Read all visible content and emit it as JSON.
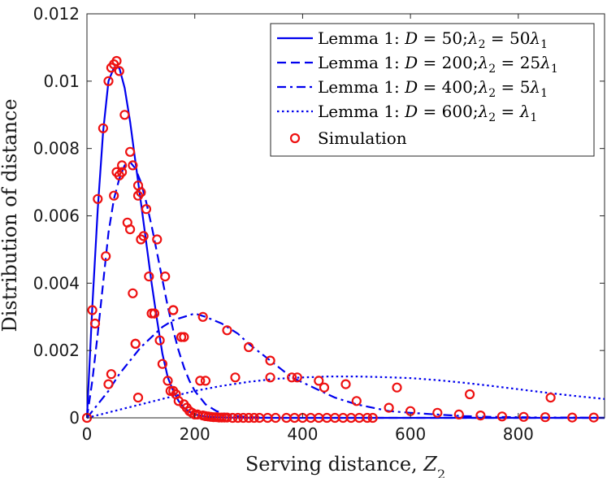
{
  "chart_data": {
    "type": "line",
    "title": "",
    "xlabel": "Serving distance, ",
    "xlabel_var": "Z",
    "xlabel_sub": "2",
    "ylabel": "Distribution of distance",
    "xlim": [
      0,
      960
    ],
    "ylim": [
      0,
      0.012
    ],
    "xticks": [
      0,
      200,
      400,
      600,
      800
    ],
    "xtick_labels": [
      "0",
      "200",
      "400",
      "600",
      "800"
    ],
    "yticks": [
      0,
      0.002,
      0.004,
      0.006,
      0.008,
      0.01,
      0.012
    ],
    "ytick_labels": [
      "0",
      "0.002",
      "0.004",
      "0.006",
      "0.008",
      "0.01",
      "0.012"
    ],
    "line_color": "#0000ee",
    "marker_color": "#ee1111",
    "legend_position": "top-right",
    "series": [
      {
        "name": "Lemma 1:  D = 50;λ2 = 50λ1",
        "legend_prefix": "Lemma 1:  ",
        "legend_D": "D",
        "legend_Dval": " = 50;",
        "legend_lam": "λ",
        "legend_eq": " = ",
        "legend_coef": "50",
        "style": "solid",
        "x": [
          0,
          10,
          20,
          30,
          40,
          50,
          60,
          70,
          80,
          90,
          100,
          110,
          120,
          130,
          140,
          150,
          160,
          170,
          180,
          190,
          200,
          220,
          240,
          260,
          280,
          300,
          350,
          400,
          500,
          600,
          700,
          800,
          960
        ],
        "y": [
          0,
          0.0033,
          0.0062,
          0.0085,
          0.01,
          0.0104,
          0.0104,
          0.0098,
          0.0088,
          0.0076,
          0.0064,
          0.0052,
          0.004,
          0.0029,
          0.0019,
          0.0012,
          0.0008,
          0.0005,
          0.0003,
          0.00018,
          0.0001,
          4e-05,
          2e-05,
          1e-05,
          5e-06,
          2e-06,
          0,
          0,
          0,
          0,
          0,
          0,
          0
        ]
      },
      {
        "name": "Lemma 1:  D = 200;λ2 = 25λ1",
        "legend_prefix": "Lemma 1:  ",
        "legend_D": "D",
        "legend_Dval": " = 200;",
        "legend_lam": "λ",
        "legend_eq": " = ",
        "legend_coef": "25",
        "style": "dashed",
        "x": [
          0,
          10,
          20,
          30,
          40,
          50,
          60,
          70,
          80,
          90,
          100,
          110,
          120,
          130,
          140,
          150,
          160,
          170,
          180,
          190,
          200,
          210,
          220,
          240,
          260,
          280,
          300,
          350,
          400,
          500,
          600,
          700,
          800,
          960
        ],
        "y": [
          0,
          0.0011,
          0.0025,
          0.004,
          0.0055,
          0.0065,
          0.0071,
          0.0075,
          0.0076,
          0.0074,
          0.007,
          0.0064,
          0.0057,
          0.0049,
          0.0041,
          0.0033,
          0.0026,
          0.002,
          0.0015,
          0.0011,
          0.0008,
          0.0006,
          0.0004,
          0.0002,
          0.0001,
          5e-05,
          2e-05,
          0,
          0,
          0,
          0,
          0,
          0,
          0
        ]
      },
      {
        "name": "Lemma 1:  D = 400;λ2 = 5λ1",
        "legend_prefix": "Lemma 1:  ",
        "legend_D": "D",
        "legend_Dval": " = 400;",
        "legend_lam": "λ",
        "legend_eq": " = ",
        "legend_coef": "5",
        "style": "dashdot",
        "x": [
          0,
          20,
          40,
          60,
          80,
          100,
          120,
          140,
          160,
          180,
          200,
          220,
          250,
          280,
          300,
          340,
          380,
          420,
          460,
          500,
          560,
          600,
          650,
          700,
          750,
          800,
          850,
          900,
          960
        ],
        "y": [
          0,
          0.0004,
          0.0008,
          0.0013,
          0.0017,
          0.0021,
          0.0024,
          0.0027,
          0.0029,
          0.003,
          0.0031,
          0.003,
          0.0028,
          0.0025,
          0.0022,
          0.0017,
          0.0012,
          0.0009,
          0.0006,
          0.0004,
          0.0002,
          0.00015,
          0.0001,
          5e-05,
          3e-05,
          2e-05,
          1e-05,
          1e-05,
          0
        ]
      },
      {
        "name": "Lemma 1:  D = 600;λ2 = λ1",
        "legend_prefix": "Lemma 1:  ",
        "legend_D": "D",
        "legend_Dval": " = 600;",
        "legend_lam": "λ",
        "legend_eq": " = ",
        "legend_coef": "",
        "style": "dotted",
        "x": [
          0,
          50,
          100,
          150,
          200,
          250,
          300,
          350,
          400,
          450,
          500,
          550,
          600,
          650,
          700,
          750,
          800,
          850,
          900,
          960
        ],
        "y": [
          0,
          0.0002,
          0.0004,
          0.0006,
          0.0008,
          0.00095,
          0.00107,
          0.00116,
          0.0012,
          0.00123,
          0.00123,
          0.00121,
          0.00118,
          0.00112,
          0.00104,
          0.00095,
          0.00085,
          0.00075,
          0.00066,
          0.00056
        ]
      }
    ],
    "simulation": {
      "name": "Simulation",
      "x": [
        0,
        10,
        15,
        20,
        30,
        35,
        40,
        45,
        50,
        55,
        60,
        65,
        70,
        80,
        85,
        90,
        95,
        100,
        105,
        110,
        115,
        120,
        125,
        130,
        135,
        140,
        145,
        150,
        155,
        160,
        165,
        170,
        175,
        180,
        185,
        190,
        195,
        200,
        205,
        210,
        215,
        220,
        225,
        230,
        235,
        240,
        245,
        250,
        255,
        260,
        270,
        280,
        290,
        300,
        310,
        320,
        335,
        350,
        370,
        385,
        400,
        415,
        430,
        445,
        460,
        475,
        490,
        505,
        520,
        530,
        45,
        90,
        125,
        160,
        180,
        215,
        260,
        300,
        340,
        390,
        440,
        500,
        560,
        600,
        650,
        690,
        730,
        770,
        810,
        850,
        900,
        940,
        40,
        95,
        160,
        220,
        275,
        340,
        380,
        430,
        480,
        575,
        710,
        860,
        50,
        55,
        60,
        65,
        75,
        80,
        85,
        95,
        100
      ],
      "y": [
        0,
        0.0032,
        0.0028,
        0.0065,
        0.0086,
        0.0048,
        0.01,
        0.0104,
        0.0105,
        0.0106,
        0.0103,
        0.0073,
        0.009,
        0.0079,
        0.0075,
        0.0022,
        0.0069,
        0.0067,
        0.0054,
        0.0062,
        0.0042,
        0.0031,
        0.0031,
        0.0053,
        0.0023,
        0.0016,
        0.0042,
        0.0011,
        0.0008,
        0.0032,
        0.0007,
        0.0005,
        0.0024,
        0.0004,
        0.0003,
        0.0002,
        0.00015,
        0.0001,
        0.0001,
        0.0011,
        7e-05,
        5e-05,
        4e-05,
        3e-05,
        2e-05,
        2e-05,
        1e-05,
        1e-05,
        1e-05,
        1e-05,
        0,
        0,
        0,
        0,
        0,
        0,
        0,
        0,
        0,
        0,
        0,
        0,
        0,
        0,
        0,
        0,
        0,
        0,
        0,
        0,
        0.0013,
        0.0022,
        0.0031,
        0.0032,
        0.0024,
        0.003,
        0.0026,
        0.0021,
        0.0017,
        0.0012,
        0.0009,
        0.0005,
        0.0003,
        0.0002,
        0.00015,
        0.0001,
        7e-05,
        4e-05,
        3e-05,
        2e-05,
        1e-05,
        1e-05,
        0.001,
        0.0006,
        0.0008,
        0.0011,
        0.0012,
        0.0012,
        0.0012,
        0.0011,
        0.001,
        0.0009,
        0.0007,
        0.0006,
        0.0066,
        0.0073,
        0.0072,
        0.0075,
        0.0058,
        0.0056,
        0.0037,
        0.0066,
        0.0053
      ]
    },
    "legend_sim_label": "Simulation"
  }
}
